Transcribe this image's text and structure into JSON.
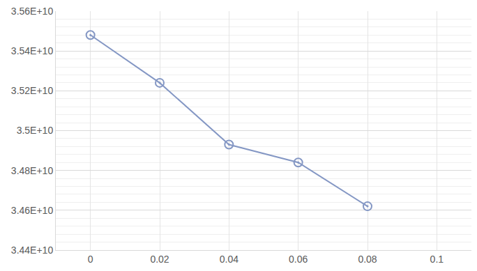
{
  "chart_data": {
    "type": "line",
    "categories": [
      "0",
      "0.02",
      "0.04",
      "0.06",
      "0.08",
      "0.1"
    ],
    "values": [
      35480000000,
      35240000000,
      34930000000,
      34840000000,
      34620000000,
      null
    ],
    "color": "#8497c4",
    "marker": "circle-open-dot",
    "ylim": [
      34400000000,
      35600000000
    ],
    "yticks": [
      {
        "value": 34400000000,
        "label": "3.44E+10"
      },
      {
        "value": 34600000000,
        "label": "3.46E+10"
      },
      {
        "value": 34800000000,
        "label": "3.48E+10"
      },
      {
        "value": 35000000000,
        "label": "3.5E+10"
      },
      {
        "value": 35200000000,
        "label": "3.52E+10"
      },
      {
        "value": 35400000000,
        "label": "3.54E+10"
      },
      {
        "value": 35600000000,
        "label": "3.56E+10"
      }
    ],
    "grid": true
  }
}
